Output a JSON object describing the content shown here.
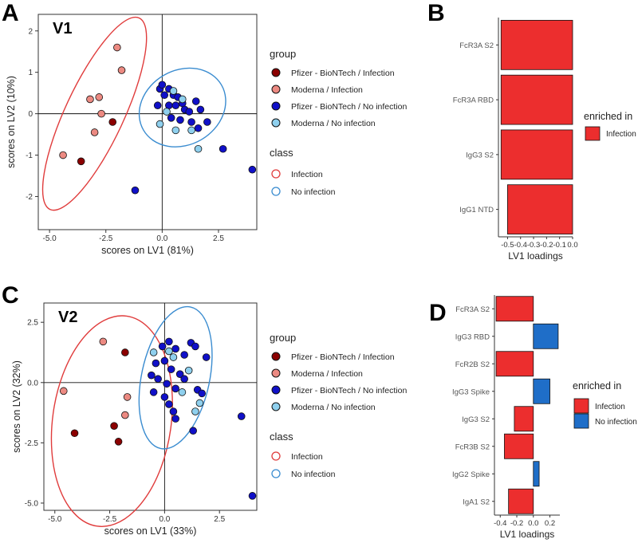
{
  "panel_letters": {
    "a": "A",
    "b": "B",
    "c": "C",
    "d": "D"
  },
  "colors": {
    "pfizer_infection": "#8b0000",
    "moderna_infection": "#ec8a82",
    "pfizer_noinfection": "#1010c8",
    "moderna_noinfection": "#8fd0ee",
    "infection_class": "#e03c3c",
    "noinfection_class": "#3a8cd0",
    "bar_infection": "#ec2e2e",
    "bar_noinfection": "#1f6ec8"
  },
  "legend_group": {
    "title": "group",
    "items": [
      {
        "label": "Pfizer - BioNTech / Infection",
        "color": "#8b0000"
      },
      {
        "label": "Moderna / Infection",
        "color": "#ec8a82"
      },
      {
        "label": "Pfizer - BioNTech / No infection",
        "color": "#1010c8"
      },
      {
        "label": "Moderna / No infection",
        "color": "#8fd0ee"
      }
    ]
  },
  "legend_class": {
    "title": "class",
    "items": [
      {
        "label": "Infection",
        "color": "#e03c3c"
      },
      {
        "label": "No infection",
        "color": "#3a8cd0"
      }
    ]
  },
  "legend_enriched": {
    "title": "enriched in",
    "infection": "Infection",
    "noinfection": "No infection"
  },
  "chart_data": [
    {
      "id": "A",
      "type": "scatter",
      "title": "V1",
      "xlabel": "scores on LV1 (81%)",
      "ylabel": "scores on LV2 (10%)",
      "xlim": [
        -5.5,
        4.2
      ],
      "ylim": [
        -2.8,
        2.4
      ],
      "xticks": [
        -5.0,
        -2.5,
        0.0,
        2.5
      ],
      "xtick_labels": [
        "-5.0",
        "-2.5",
        "0.0",
        "2.5"
      ],
      "yticks": [
        2,
        1,
        0,
        -1,
        -2
      ],
      "ytick_labels": [
        "2",
        "1",
        "0",
        "-1",
        "-2"
      ],
      "ellipses": [
        {
          "class": "Infection",
          "cx": -3.0,
          "cy": 0.0,
          "rx": 1.3,
          "ry": 2.55,
          "angle": 25
        },
        {
          "class": "No infection",
          "cx": 0.9,
          "cy": 0.15,
          "rx": 2.0,
          "ry": 0.9,
          "angle": -30
        }
      ],
      "points": [
        {
          "x": -2.0,
          "y": 1.6,
          "g": 1
        },
        {
          "x": -1.8,
          "y": 1.05,
          "g": 1
        },
        {
          "x": -3.2,
          "y": 0.35,
          "g": 1
        },
        {
          "x": -2.8,
          "y": 0.4,
          "g": 1
        },
        {
          "x": -2.7,
          "y": 0.0,
          "g": 1
        },
        {
          "x": -3.0,
          "y": -0.45,
          "g": 1
        },
        {
          "x": -4.4,
          "y": -1.0,
          "g": 1
        },
        {
          "x": -2.2,
          "y": -0.2,
          "g": 0
        },
        {
          "x": -3.6,
          "y": -1.15,
          "g": 0
        },
        {
          "x": -0.1,
          "y": 0.6,
          "g": 2
        },
        {
          "x": 0.0,
          "y": 0.7,
          "g": 2
        },
        {
          "x": 0.3,
          "y": 0.6,
          "g": 2
        },
        {
          "x": 0.5,
          "y": 0.45,
          "g": 2
        },
        {
          "x": 0.7,
          "y": 0.4,
          "g": 2
        },
        {
          "x": 0.9,
          "y": 0.25,
          "g": 2
        },
        {
          "x": 1.0,
          "y": 0.1,
          "g": 2
        },
        {
          "x": 1.2,
          "y": 0.05,
          "g": 2
        },
        {
          "x": 1.5,
          "y": 0.3,
          "g": 2
        },
        {
          "x": 1.7,
          "y": 0.1,
          "g": 2
        },
        {
          "x": 0.3,
          "y": 0.2,
          "g": 2
        },
        {
          "x": 0.6,
          "y": 0.2,
          "g": 2
        },
        {
          "x": -0.2,
          "y": 0.2,
          "g": 2
        },
        {
          "x": 0.4,
          "y": -0.1,
          "g": 2
        },
        {
          "x": 0.8,
          "y": -0.15,
          "g": 2
        },
        {
          "x": 1.3,
          "y": -0.2,
          "g": 2
        },
        {
          "x": 1.6,
          "y": -0.35,
          "g": 2
        },
        {
          "x": 2.0,
          "y": -0.2,
          "g": 2
        },
        {
          "x": 0.1,
          "y": 0.45,
          "g": 2
        },
        {
          "x": 2.7,
          "y": -0.85,
          "g": 2
        },
        {
          "x": 4.0,
          "y": -1.35,
          "g": 2
        },
        {
          "x": -1.2,
          "y": -1.85,
          "g": 2
        },
        {
          "x": 0.5,
          "y": 0.55,
          "g": 3
        },
        {
          "x": 0.2,
          "y": 0.05,
          "g": 3
        },
        {
          "x": 0.9,
          "y": 0.35,
          "g": 3
        },
        {
          "x": -0.1,
          "y": -0.25,
          "g": 3
        },
        {
          "x": 0.6,
          "y": -0.4,
          "g": 3
        },
        {
          "x": 1.3,
          "y": -0.4,
          "g": 3
        },
        {
          "x": 1.6,
          "y": -0.85,
          "g": 3
        }
      ]
    },
    {
      "id": "B",
      "type": "bar",
      "orientation": "horizontal",
      "categories": [
        "FcR3A S2",
        "FcR3A RBD",
        "IgG3 S2",
        "IgG1 NTD"
      ],
      "values": [
        -0.55,
        -0.55,
        -0.55,
        -0.5
      ],
      "enriched": [
        "Infection",
        "Infection",
        "Infection",
        "Infection"
      ],
      "xlabel": "LV1 loadings",
      "xlim": [
        -0.57,
        0.0
      ],
      "xticks": [
        -0.5,
        -0.4,
        -0.3,
        -0.2,
        -0.1,
        0.0
      ],
      "xtick_labels": [
        "-0.5",
        "-0.4",
        "-0.3",
        "-0.2",
        "-0.1",
        "0.0"
      ]
    },
    {
      "id": "C",
      "type": "scatter",
      "title": "V2",
      "xlabel": "scores on LV1 (33%)",
      "ylabel": "scores on LV2 (32%)",
      "xlim": [
        -5.5,
        4.2
      ],
      "ylim": [
        -5.3,
        3.3
      ],
      "xticks": [
        -5.0,
        -2.5,
        0.0,
        2.5
      ],
      "xtick_labels": [
        "-5.0",
        "-2.5",
        "0.0",
        "2.5"
      ],
      "yticks": [
        2.5,
        0.0,
        -2.5,
        -5.0
      ],
      "ytick_labels": [
        "2.5",
        "0.0",
        "-2.5",
        "-5.0"
      ],
      "ellipses": [
        {
          "class": "Infection",
          "cx": -2.4,
          "cy": -1.6,
          "rx": 2.7,
          "ry": 4.4,
          "angle": 8
        },
        {
          "class": "No infection",
          "cx": 0.5,
          "cy": 0.2,
          "rx": 1.55,
          "ry": 3.0,
          "angle": 12
        }
      ],
      "points": [
        {
          "x": -2.8,
          "y": 1.7,
          "g": 1
        },
        {
          "x": -4.6,
          "y": -0.35,
          "g": 1
        },
        {
          "x": -1.7,
          "y": -0.6,
          "g": 1
        },
        {
          "x": -1.8,
          "y": -1.35,
          "g": 1
        },
        {
          "x": -1.8,
          "y": 1.25,
          "g": 0
        },
        {
          "x": -4.1,
          "y": -2.1,
          "g": 0
        },
        {
          "x": -2.3,
          "y": -1.8,
          "g": 0
        },
        {
          "x": -2.1,
          "y": -2.45,
          "g": 0
        },
        {
          "x": -0.1,
          "y": 1.5,
          "g": 2
        },
        {
          "x": 0.2,
          "y": 1.7,
          "g": 2
        },
        {
          "x": 0.5,
          "y": 1.4,
          "g": 2
        },
        {
          "x": 0.9,
          "y": 1.15,
          "g": 2
        },
        {
          "x": 1.2,
          "y": 1.65,
          "g": 2
        },
        {
          "x": 1.4,
          "y": 1.5,
          "g": 2
        },
        {
          "x": 1.9,
          "y": 1.05,
          "g": 2
        },
        {
          "x": -0.4,
          "y": 0.8,
          "g": 2
        },
        {
          "x": 0.0,
          "y": 0.9,
          "g": 2
        },
        {
          "x": 0.3,
          "y": 0.55,
          "g": 2
        },
        {
          "x": 0.7,
          "y": 0.35,
          "g": 2
        },
        {
          "x": -0.6,
          "y": 0.3,
          "g": 2
        },
        {
          "x": -0.3,
          "y": 0.15,
          "g": 2
        },
        {
          "x": 0.1,
          "y": -0.05,
          "g": 2
        },
        {
          "x": 0.5,
          "y": -0.25,
          "g": 2
        },
        {
          "x": 0.9,
          "y": 0.15,
          "g": 2
        },
        {
          "x": 1.5,
          "y": -0.3,
          "g": 2
        },
        {
          "x": 1.7,
          "y": -0.45,
          "g": 2
        },
        {
          "x": -0.5,
          "y": -0.4,
          "g": 2
        },
        {
          "x": 0.0,
          "y": -0.6,
          "g": 2
        },
        {
          "x": 0.2,
          "y": -0.9,
          "g": 2
        },
        {
          "x": 0.4,
          "y": -1.2,
          "g": 2
        },
        {
          "x": 0.5,
          "y": -1.5,
          "g": 2
        },
        {
          "x": 1.3,
          "y": -2.0,
          "g": 2
        },
        {
          "x": 3.5,
          "y": -1.4,
          "g": 2
        },
        {
          "x": 4.0,
          "y": -4.7,
          "g": 2
        },
        {
          "x": -0.5,
          "y": 1.25,
          "g": 3
        },
        {
          "x": 0.4,
          "y": 1.05,
          "g": 3
        },
        {
          "x": 1.1,
          "y": 0.5,
          "g": 3
        },
        {
          "x": 0.8,
          "y": -0.4,
          "g": 3
        },
        {
          "x": 1.6,
          "y": -0.85,
          "g": 3
        },
        {
          "x": 1.4,
          "y": -1.2,
          "g": 3
        },
        {
          "x": 0.2,
          "y": 1.3,
          "g": 3
        }
      ]
    },
    {
      "id": "D",
      "type": "bar",
      "orientation": "horizontal",
      "categories": [
        "FcR3A S2",
        "IgG3 RBD",
        "FcR2B S2",
        "IgG3 Spike",
        "IgG3 S2",
        "FcR3B S2",
        "IgG2 Spike",
        "IgA1 S2"
      ],
      "values": [
        -0.45,
        0.3,
        -0.45,
        0.2,
        -0.23,
        -0.35,
        0.07,
        -0.3
      ],
      "enriched": [
        "Infection",
        "No infection",
        "Infection",
        "No infection",
        "Infection",
        "Infection",
        "No infection",
        "Infection"
      ],
      "xlabel": "LV1 loadings",
      "xlim": [
        -0.47,
        0.32
      ],
      "xticks": [
        -0.4,
        -0.2,
        0.0,
        0.2
      ],
      "xtick_labels": [
        "-0.4",
        "-0.2",
        "0.0",
        "0.2"
      ]
    }
  ]
}
